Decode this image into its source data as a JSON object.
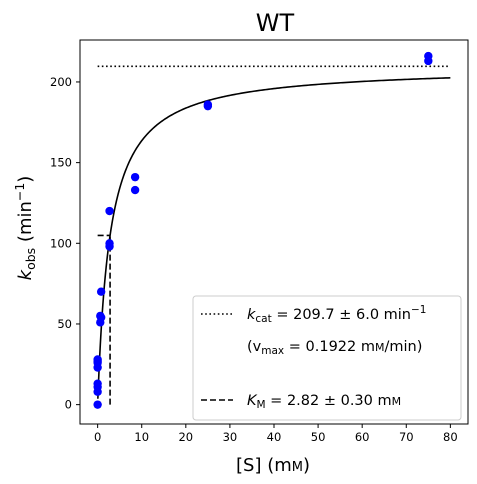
{
  "chart_data": {
    "type": "scatter",
    "title": "WT",
    "xlabel": {
      "main": "[S] (m",
      "unit_sc": "M",
      "close": ")"
    },
    "ylabel": {
      "k": "k",
      "sub": "obs",
      "rest": " (min",
      "sup": "−1",
      "close": ")"
    },
    "xlim": [
      -4,
      84
    ],
    "ylim": [
      -12,
      226
    ],
    "xticks": [
      0,
      10,
      20,
      30,
      40,
      50,
      60,
      70,
      80
    ],
    "yticks": [
      0,
      50,
      100,
      150,
      200
    ],
    "grid": false,
    "colors": {
      "points": "#0000ff",
      "lines": "#000000"
    },
    "series": [
      {
        "marker": "circle",
        "x": [
          0,
          0,
          0,
          0,
          0,
          0,
          0,
          0,
          0.6,
          0.6,
          0.8,
          0.8,
          2.7,
          2.7,
          2.7,
          8.5,
          8.5,
          25,
          25,
          75,
          75
        ],
        "y": [
          0,
          8,
          11,
          13,
          23,
          26,
          27,
          28,
          51,
          55,
          54,
          70,
          98,
          100,
          120,
          133,
          141,
          185,
          186,
          213,
          216
        ]
      }
    ],
    "fit": {
      "model": "michaelis-menten",
      "vmax": 209.7,
      "km": 2.82,
      "x_range": [
        0.05,
        80
      ]
    },
    "kcat_line": {
      "y": 209.7,
      "x_range": [
        0,
        80
      ]
    },
    "km_line": {
      "x": 2.82,
      "y_range": [
        0,
        104.85
      ],
      "half_x_range": [
        0,
        2.82
      ]
    },
    "legend": {
      "placement": "lower-right",
      "entries": [
        {
          "style": "dotted",
          "k": "k",
          "sub": "cat",
          "text": " = 209.7 ± 6.0 min",
          "sup": "−1"
        },
        {
          "style": "none",
          "text_open": "(v",
          "sub": "max",
          "text": " = 0.1922 m",
          "unit_sc": "M",
          "text_end": "/min)"
        },
        {
          "style": "dashed",
          "k": "K",
          "sub": "M",
          "text": " = 2.82 ± 0.30 m",
          "unit_sc": "M"
        }
      ]
    }
  }
}
